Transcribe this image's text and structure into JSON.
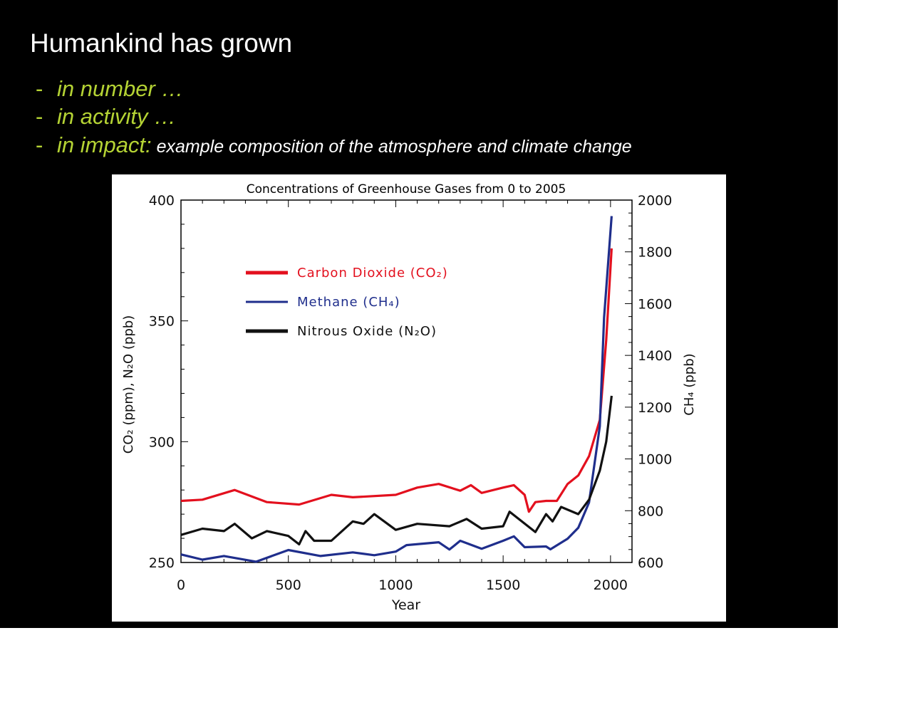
{
  "slide": {
    "title": "Humankind has grown",
    "bullets": [
      {
        "dash": "-",
        "text": "in number …",
        "sub": ""
      },
      {
        "dash": "-",
        "text": "in activity …",
        "sub": ""
      },
      {
        "dash": "-",
        "text": "in impact:",
        "sub": " example composition of the atmosphere and climate change"
      }
    ]
  },
  "colors": {
    "bullet": "#b5d334",
    "co2": "#e3101e",
    "ch4": "#1f2e8c",
    "n2o": "#111111"
  },
  "chart_data": {
    "type": "line",
    "title": "Concentrations of Greenhouse Gases from 0 to 2005",
    "xlabel": "Year",
    "ylabel": "CO₂ (ppm), N₂O (ppb)",
    "ylabel_right": "CH₄ (ppb)",
    "xlim": [
      0,
      2100
    ],
    "ylim": [
      250,
      400
    ],
    "ylim_right": [
      600,
      2000
    ],
    "xticks": [
      "0",
      "500",
      "1000",
      "1500",
      "2000"
    ],
    "yticks": [
      "250",
      "300",
      "350",
      "400"
    ],
    "yticks_right": [
      "600",
      "800",
      "1000",
      "1200",
      "1400",
      "1600",
      "1800",
      "2000"
    ],
    "legend_position": "upper-left",
    "series": [
      {
        "name": "Carbon Dioxide (CO₂)",
        "axis": "left",
        "color": "#e3101e",
        "x": [
          0,
          100,
          250,
          400,
          550,
          700,
          800,
          1000,
          1100,
          1200,
          1300,
          1350,
          1400,
          1500,
          1550,
          1600,
          1620,
          1650,
          1700,
          1750,
          1800,
          1850,
          1900,
          1950,
          1980,
          2005
        ],
        "y": [
          275.5,
          276,
          280,
          275,
          274,
          278,
          277,
          278,
          281,
          282.5,
          279.7,
          282,
          278.8,
          281,
          282,
          278,
          271,
          275,
          275.5,
          275.5,
          282.5,
          286,
          294,
          309,
          342,
          380
        ]
      },
      {
        "name": "Methane (CH₄)",
        "axis": "right",
        "color": "#1f2e8c",
        "x": [
          0,
          100,
          200,
          350,
          500,
          650,
          800,
          900,
          1000,
          1050,
          1200,
          1250,
          1300,
          1400,
          1500,
          1550,
          1600,
          1700,
          1720,
          1800,
          1850,
          1900,
          1950,
          1970,
          2005
        ],
        "y": [
          631,
          611,
          625,
          603,
          648,
          625,
          639,
          628,
          642,
          667,
          678,
          650,
          684,
          653,
          684,
          701,
          659,
          662,
          651,
          692,
          734,
          832,
          1126,
          1546,
          1938
        ]
      },
      {
        "name": "Nitrous Oxide (N₂O)",
        "axis": "left",
        "color": "#111111",
        "x": [
          0,
          100,
          200,
          250,
          330,
          400,
          500,
          550,
          580,
          620,
          700,
          800,
          850,
          900,
          1000,
          1100,
          1250,
          1330,
          1400,
          1500,
          1530,
          1650,
          1700,
          1730,
          1770,
          1850,
          1900,
          1950,
          1980,
          2005
        ],
        "y": [
          261.4,
          264,
          263,
          266,
          260,
          263,
          261,
          257.5,
          263,
          259,
          259,
          267,
          266,
          270,
          263.5,
          266,
          265,
          268,
          264,
          265,
          271,
          262.6,
          270,
          267,
          273,
          270,
          276,
          288,
          300,
          319
        ]
      }
    ]
  }
}
